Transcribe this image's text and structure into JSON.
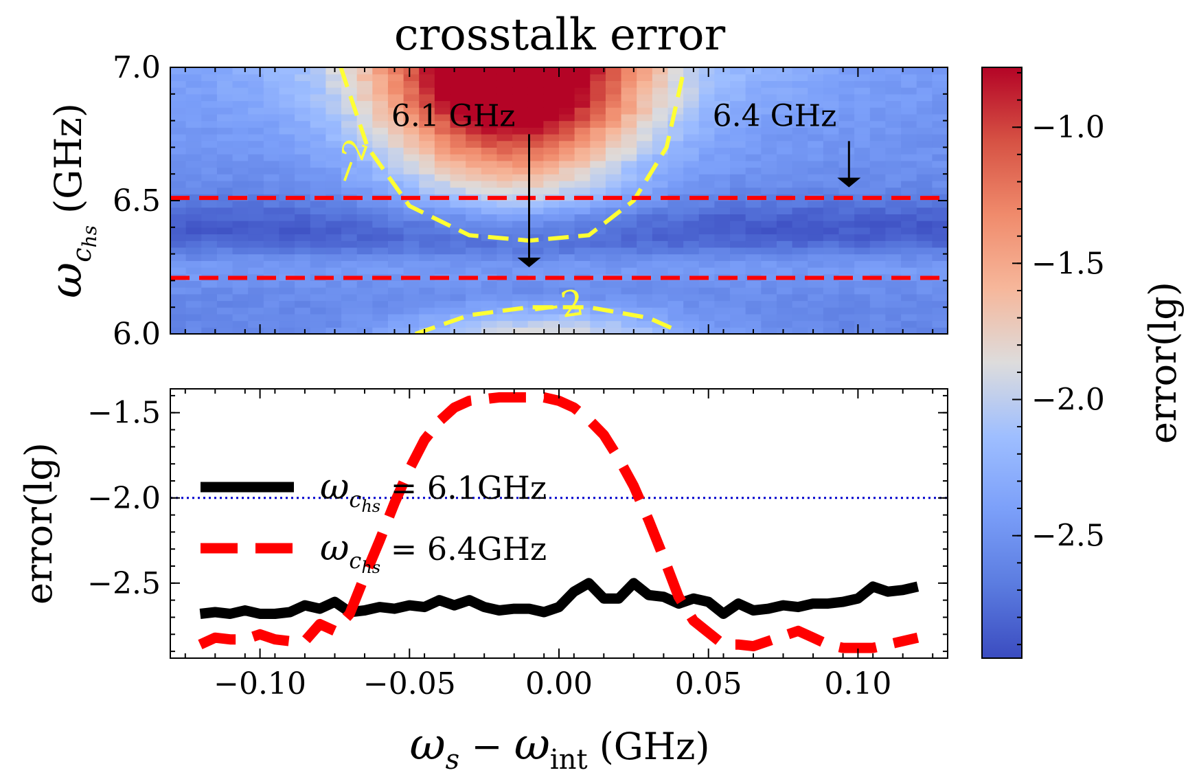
{
  "chart_data": [
    {
      "type": "heatmap",
      "title": "crosstalk error",
      "xlabel": "",
      "ylabel_main": "ω",
      "ylabel_sub": "c",
      "ylabel_subsub": "hs",
      "ylabel_unit": " (GHz)",
      "x_range": [
        -0.13,
        0.13
      ],
      "y_range": [
        6.0,
        7.0
      ],
      "yticks": [
        6.0,
        6.5,
        7.0
      ],
      "ytick_labels": [
        "6.0",
        "6.5",
        "7.0"
      ],
      "grid": false,
      "colormap": "coolwarm",
      "colorbar": {
        "label": "error(lg)",
        "range": [
          -2.95,
          -0.78
        ],
        "ticks": [
          -2.5,
          -2.0,
          -1.5,
          -1.0
        ],
        "tick_labels": [
          "−2.5",
          "−2.0",
          "−1.5",
          "−1.0"
        ]
      },
      "contour": {
        "level": -2,
        "label": "−2",
        "color": "#ffff33",
        "upper_curve": [
          [
            -0.073,
            7.0
          ],
          [
            -0.064,
            6.7
          ],
          [
            -0.05,
            6.48
          ],
          [
            -0.03,
            6.37
          ],
          [
            -0.01,
            6.35
          ],
          [
            0.01,
            6.37
          ],
          [
            0.025,
            6.5
          ],
          [
            0.036,
            6.7
          ],
          [
            0.042,
            7.0
          ]
        ],
        "lower_curve": [
          [
            -0.048,
            6.0
          ],
          [
            -0.03,
            6.07
          ],
          [
            -0.01,
            6.1
          ],
          [
            0.01,
            6.1
          ],
          [
            0.03,
            6.06
          ],
          [
            0.04,
            6.01
          ]
        ]
      },
      "reference_lines": {
        "values": [
          6.21,
          6.51
        ],
        "color": "#ff0000",
        "style": "dashed"
      },
      "annotations": [
        {
          "text": "6.1 GHz",
          "x": -0.01,
          "y_text": 6.78,
          "arrow_to": 6.25
        },
        {
          "text": "6.4 GHz",
          "x": 0.097,
          "y_text": 6.78,
          "arrow_to": 6.55
        }
      ]
    },
    {
      "type": "line",
      "xlabel_a": "ω",
      "xlabel_a_sub": "s",
      "xlabel_minus": " − ",
      "xlabel_b": "ω",
      "xlabel_b_sub": "int",
      "xlabel_unit": " (GHz)",
      "ylabel": "error(lg)",
      "x_range": [
        -0.13,
        0.13
      ],
      "y_range": [
        -2.94,
        -1.36
      ],
      "xticks": [
        -0.1,
        -0.05,
        0.0,
        0.05,
        0.1
      ],
      "xtick_labels": [
        "−0.10",
        "−0.05",
        "0.00",
        "0.05",
        "0.10"
      ],
      "yticks": [
        -2.5,
        -2.0,
        -1.5
      ],
      "ytick_labels": [
        "−2.5",
        "−2.0",
        "−1.5"
      ],
      "grid": false,
      "legend_placement": "center-left",
      "threshold": {
        "value": -2.0,
        "color": "#0000cc",
        "style": "dotted"
      },
      "series": [
        {
          "name_main": "ω",
          "name_sub": "c",
          "name_subsub": "hs",
          "name_tail": " = 6.1GHz",
          "color": "#000000",
          "style": "solid",
          "x": [
            -0.12,
            -0.115,
            -0.11,
            -0.105,
            -0.1,
            -0.095,
            -0.09,
            -0.085,
            -0.08,
            -0.075,
            -0.07,
            -0.065,
            -0.06,
            -0.055,
            -0.05,
            -0.045,
            -0.04,
            -0.035,
            -0.03,
            -0.025,
            -0.02,
            -0.015,
            -0.01,
            -0.005,
            0.0,
            0.005,
            0.01,
            0.015,
            0.02,
            0.025,
            0.03,
            0.035,
            0.04,
            0.045,
            0.05,
            0.055,
            0.06,
            0.065,
            0.07,
            0.075,
            0.08,
            0.085,
            0.09,
            0.095,
            0.1,
            0.105,
            0.11,
            0.115,
            0.12
          ],
          "y": [
            -2.68,
            -2.67,
            -2.68,
            -2.66,
            -2.68,
            -2.68,
            -2.67,
            -2.63,
            -2.65,
            -2.61,
            -2.67,
            -2.66,
            -2.64,
            -2.65,
            -2.63,
            -2.64,
            -2.6,
            -2.63,
            -2.6,
            -2.64,
            -2.66,
            -2.65,
            -2.65,
            -2.67,
            -2.64,
            -2.55,
            -2.5,
            -2.59,
            -2.59,
            -2.5,
            -2.57,
            -2.58,
            -2.62,
            -2.59,
            -2.61,
            -2.68,
            -2.62,
            -2.66,
            -2.65,
            -2.63,
            -2.64,
            -2.62,
            -2.62,
            -2.61,
            -2.59,
            -2.52,
            -2.55,
            -2.54,
            -2.52
          ]
        },
        {
          "name_main": "ω",
          "name_sub": "c",
          "name_subsub": "hs",
          "name_tail": " = 6.4GHz",
          "color": "#ff0000",
          "style": "dashed",
          "x": [
            -0.12,
            -0.115,
            -0.11,
            -0.105,
            -0.1,
            -0.095,
            -0.09,
            -0.085,
            -0.08,
            -0.075,
            -0.07,
            -0.065,
            -0.06,
            -0.055,
            -0.05,
            -0.045,
            -0.04,
            -0.035,
            -0.03,
            -0.025,
            -0.02,
            -0.015,
            -0.01,
            -0.005,
            0.0,
            0.005,
            0.01,
            0.015,
            0.02,
            0.025,
            0.03,
            0.035,
            0.04,
            0.045,
            0.05,
            0.055,
            0.06,
            0.065,
            0.07,
            0.075,
            0.08,
            0.085,
            0.09,
            0.095,
            0.1,
            0.105,
            0.11,
            0.115,
            0.12
          ],
          "y": [
            -2.86,
            -2.82,
            -2.83,
            -2.83,
            -2.8,
            -2.83,
            -2.84,
            -2.84,
            -2.74,
            -2.78,
            -2.68,
            -2.46,
            -2.25,
            -2.03,
            -1.83,
            -1.66,
            -1.55,
            -1.47,
            -1.43,
            -1.42,
            -1.41,
            -1.41,
            -1.41,
            -1.41,
            -1.43,
            -1.47,
            -1.54,
            -1.63,
            -1.77,
            -1.93,
            -2.13,
            -2.35,
            -2.58,
            -2.72,
            -2.79,
            -2.86,
            -2.86,
            -2.87,
            -2.84,
            -2.81,
            -2.78,
            -2.82,
            -2.86,
            -2.88,
            -2.88,
            -2.88,
            -2.86,
            -2.84,
            -2.82
          ]
        }
      ]
    }
  ]
}
